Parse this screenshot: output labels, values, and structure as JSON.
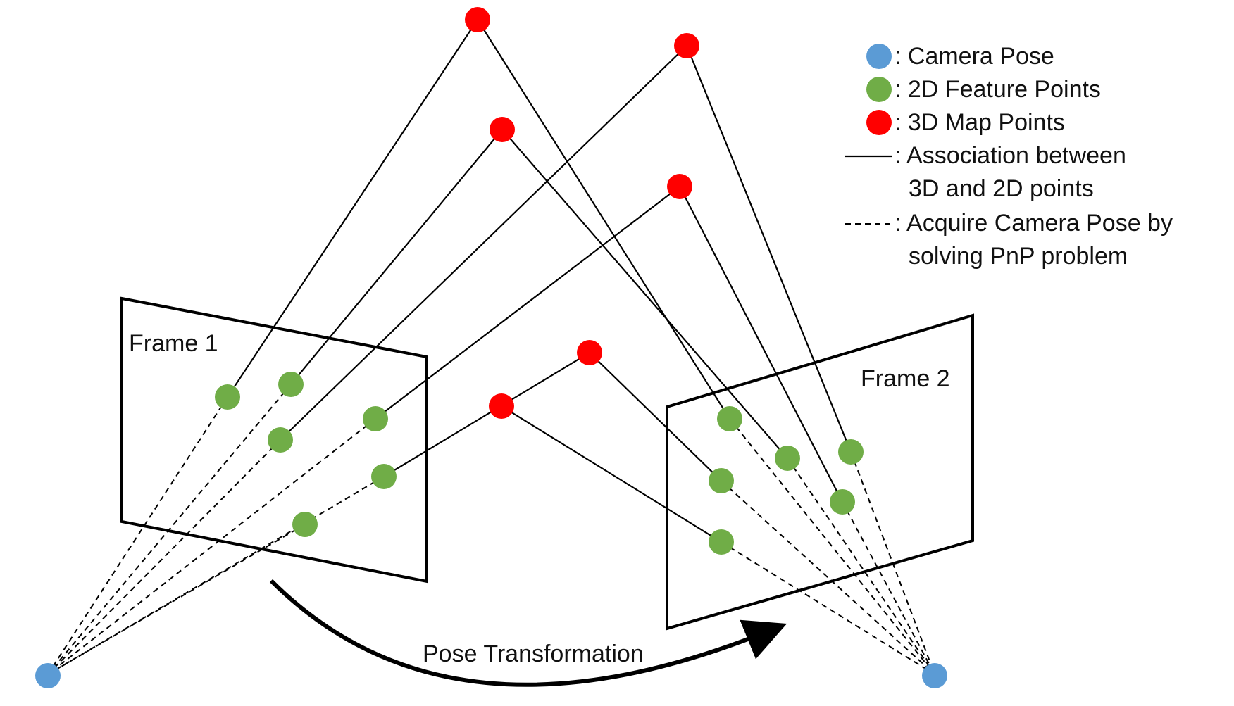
{
  "frames": [
    {
      "id": "frame-1",
      "label": "Frame 1"
    },
    {
      "id": "frame-2",
      "label": "Frame 2"
    }
  ],
  "arrow_label": "Pose Transformation",
  "colors": {
    "camera_pose": "#5B9BD5",
    "feature_point": "#70AD47",
    "map_point": "#FF0000",
    "line": "#000000"
  },
  "legend": {
    "camera_pose": ": Camera Pose",
    "feature_points": ": 2D Feature Points",
    "map_points": ": 3D Map Points",
    "association_line1": ": Association between",
    "association_line2": "3D and 2D points",
    "pnp_line1": ": Acquire Camera Pose by",
    "pnp_line2": "solving PnP problem"
  },
  "icons": {
    "camera_pose": "blue-dot",
    "feature_point": "green-dot",
    "map_point": "red-dot",
    "association": "solid-line",
    "pnp": "dashed-line"
  }
}
